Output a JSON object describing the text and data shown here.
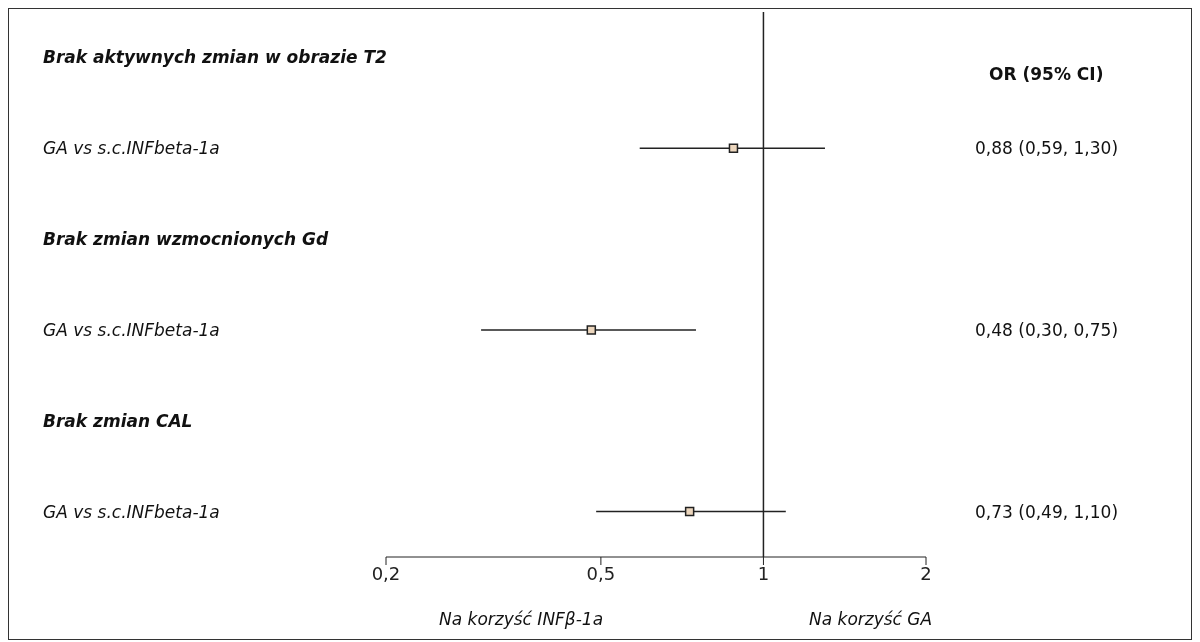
{
  "chart_data": {
    "type": "scatter",
    "orientation": "horizontal",
    "categories": [
      "Brak aktywnych zmian w obrazie T2",
      "GA vs s.c.INFbeta-1a",
      "Brak zmian wzmocnionych Gd",
      "GA vs s.c.INFbeta-1a",
      "Brak zmian CAL",
      "GA vs s.c.INFbeta-1a"
    ],
    "values": [
      null,
      0.88,
      null,
      0.48,
      null,
      0.73
    ],
    "errors": [
      null,
      [
        0.59,
        1.3
      ],
      null,
      [
        0.3,
        0.75
      ],
      null,
      [
        0.49,
        1.1
      ]
    ],
    "value_labels": [
      null,
      "0,88 (0,59, 1,30)",
      null,
      "0,48 (0,30, 0,75)",
      null,
      "0,73 (0,49, 1,10)"
    ],
    "color": "#ecd6bd",
    "marker": "square",
    "log": "x",
    "xlim": [
      0.2,
      2
    ],
    "xticks": [
      {
        "value": 0.2,
        "label": "0,2"
      },
      {
        "value": 0.5,
        "label": "0,5"
      },
      1,
      2
    ],
    "ref_lines": [
      {
        "axis": "x",
        "value": 1
      }
    ],
    "annotations": [
      "OR (95% CI)",
      "Na korzyść INFβ-1a",
      "Na korzyść GA"
    ],
    "grid": false,
    "legend": false
  }
}
